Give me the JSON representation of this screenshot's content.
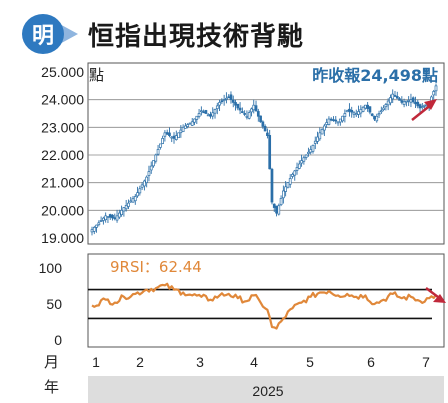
{
  "header": {
    "logo_text": "明",
    "title": "恒指出現技術背馳"
  },
  "chart_data": [
    {
      "type": "candlestick",
      "unit_label": "點",
      "annotation": "昨收報24,498點",
      "y_ticks": [
        "25.000",
        "24.000",
        "23.000",
        "22.000",
        "21.000",
        "20.000",
        "19.000"
      ],
      "ylim": [
        19000,
        25000
      ],
      "grid": true,
      "close_path": [
        [
          0,
          19300
        ],
        [
          6,
          19800
        ],
        [
          10,
          19700
        ],
        [
          14,
          20100
        ],
        [
          19,
          20500
        ],
        [
          24,
          21200
        ],
        [
          28,
          22000
        ],
        [
          32,
          22800
        ],
        [
          36,
          22600
        ],
        [
          40,
          23000
        ],
        [
          44,
          23200
        ],
        [
          48,
          23600
        ],
        [
          52,
          23400
        ],
        [
          56,
          23900
        ],
        [
          60,
          24100
        ],
        [
          64,
          23700
        ],
        [
          68,
          23400
        ],
        [
          71,
          23800
        ],
        [
          74,
          23200
        ],
        [
          77,
          22700
        ],
        [
          79,
          20300
        ],
        [
          81,
          19900
        ],
        [
          84,
          20700
        ],
        [
          88,
          21300
        ],
        [
          92,
          21800
        ],
        [
          96,
          22200
        ],
        [
          100,
          22800
        ],
        [
          104,
          23300
        ],
        [
          108,
          23200
        ],
        [
          112,
          23600
        ],
        [
          116,
          23500
        ],
        [
          120,
          23800
        ],
        [
          124,
          23300
        ],
        [
          128,
          23700
        ],
        [
          132,
          24200
        ],
        [
          136,
          23900
        ],
        [
          140,
          24000
        ],
        [
          144,
          23700
        ],
        [
          148,
          23900
        ],
        [
          151,
          24498
        ]
      ]
    },
    {
      "type": "line",
      "series": [
        {
          "name": "9RSI",
          "latest_label": "9RSI：62.44",
          "latest": 62.44
        }
      ],
      "y_ticks": [
        "100",
        "50",
        "0"
      ],
      "ylim": [
        0,
        100
      ],
      "reference_lines": [
        70,
        30
      ],
      "x": [
        0,
        6,
        10,
        14,
        19,
        24,
        28,
        32,
        36,
        40,
        44,
        48,
        52,
        56,
        60,
        64,
        68,
        71,
        74,
        77,
        79,
        81,
        84,
        88,
        92,
        96,
        100,
        104,
        108,
        112,
        116,
        120,
        124,
        128,
        132,
        136,
        140,
        144,
        148,
        151
      ],
      "values": [
        48,
        56,
        52,
        60,
        64,
        70,
        72,
        76,
        70,
        66,
        62,
        60,
        56,
        62,
        64,
        58,
        54,
        62,
        52,
        42,
        18,
        16,
        30,
        44,
        52,
        60,
        66,
        68,
        62,
        64,
        60,
        62,
        50,
        56,
        64,
        58,
        60,
        54,
        58,
        62.44
      ]
    }
  ],
  "x_axis": {
    "row_label_month": "月",
    "row_label_year": "年",
    "months": [
      "1",
      "2",
      "3",
      "4",
      "5",
      "6",
      "7"
    ],
    "year": "2025"
  },
  "colors": {
    "candle": "#2b6fa8",
    "candle_up_fill": "#ffffff",
    "rsi_line": "#e0883a",
    "rsi_label": "#e0883a",
    "annotation": "#2b6fa8",
    "arrow": "#c0283a",
    "year_band": "#dddddd",
    "logo": "#2e79c0"
  }
}
